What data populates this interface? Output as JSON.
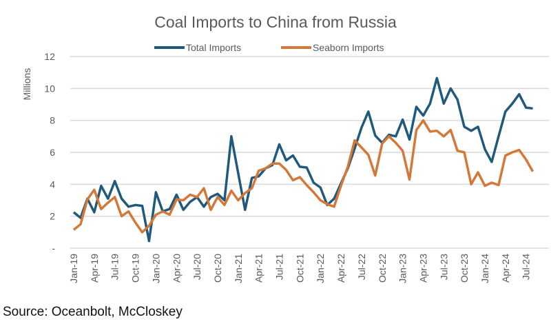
{
  "chart_data": {
    "type": "line",
    "title": "Coal Imports to China from Russia",
    "ylabel": "Millions",
    "xlabel": "",
    "ylim": [
      0,
      12
    ],
    "yticks": [
      0,
      2,
      4,
      6,
      8,
      10,
      12
    ],
    "ytick_labels": [
      "-",
      "2",
      "4",
      "6",
      "8",
      "10",
      "12"
    ],
    "grid": "horizontal",
    "legend_position": "top",
    "x": [
      "Jan-19",
      "Feb-19",
      "Mar-19",
      "Apr-19",
      "May-19",
      "Jun-19",
      "Jul-19",
      "Aug-19",
      "Sep-19",
      "Oct-19",
      "Nov-19",
      "Dec-19",
      "Jan-20",
      "Feb-20",
      "Mar-20",
      "Apr-20",
      "May-20",
      "Jun-20",
      "Jul-20",
      "Aug-20",
      "Sep-20",
      "Oct-20",
      "Nov-20",
      "Dec-20",
      "Jan-21",
      "Feb-21",
      "Mar-21",
      "Apr-21",
      "May-21",
      "Jun-21",
      "Jul-21",
      "Aug-21",
      "Sep-21",
      "Oct-21",
      "Nov-21",
      "Dec-21",
      "Jan-22",
      "Feb-22",
      "Mar-22",
      "Apr-22",
      "May-22",
      "Jun-22",
      "Jul-22",
      "Aug-22",
      "Sep-22",
      "Oct-22",
      "Nov-22",
      "Dec-22",
      "Jan-23",
      "Feb-23",
      "Mar-23",
      "Apr-23",
      "May-23",
      "Jun-23",
      "Jul-23",
      "Aug-23",
      "Sep-23",
      "Oct-23",
      "Nov-23",
      "Dec-23",
      "Jan-24",
      "Feb-24",
      "Mar-24",
      "Apr-24",
      "May-24",
      "Jun-24",
      "Jul-24",
      "Aug-24"
    ],
    "xtick_labels": [
      "Jan-19",
      "Apr-19",
      "Jul-19",
      "Oct-19",
      "Jan-20",
      "Apr-20",
      "Jul-20",
      "Oct-20",
      "Jan-21",
      "Apr-21",
      "Jul-21",
      "Oct-21",
      "Jan-22",
      "Apr-22",
      "Jul-22",
      "Oct-22",
      "Jan-23",
      "Apr-23",
      "Jul-23",
      "Oct-23",
      "Jan-24",
      "Apr-24",
      "Jul-24"
    ],
    "series": [
      {
        "name": "Total Imports",
        "color": "#1f5a7c",
        "values": [
          2.25,
          1.9,
          3.1,
          2.25,
          3.9,
          3.1,
          4.2,
          3.1,
          2.6,
          2.7,
          2.65,
          0.45,
          3.5,
          2.3,
          2.45,
          3.35,
          2.4,
          2.9,
          3.2,
          2.6,
          3.2,
          3.4,
          3.0,
          7.0,
          4.7,
          2.4,
          4.4,
          4.5,
          5.0,
          5.2,
          6.5,
          5.5,
          5.8,
          5.1,
          5.05,
          4.1,
          3.8,
          2.7,
          3.1,
          4.05,
          5.0,
          6.25,
          7.55,
          8.55,
          7.05,
          6.6,
          7.1,
          7.0,
          8.05,
          6.8,
          8.85,
          8.3,
          9.05,
          10.65,
          9.05,
          10.0,
          9.3,
          7.6,
          7.35,
          7.6,
          6.2,
          5.4,
          7.0,
          8.55,
          9.05,
          9.64,
          8.8,
          8.75
        ]
      },
      {
        "name": "Seaborn Imports",
        "color": "#d4783a",
        "values": [
          1.15,
          1.5,
          3.05,
          3.65,
          2.45,
          2.85,
          3.2,
          2.0,
          2.3,
          1.6,
          1.0,
          1.4,
          2.1,
          2.3,
          2.1,
          3.05,
          3.0,
          3.35,
          3.2,
          3.75,
          2.4,
          3.2,
          2.7,
          3.6,
          3.0,
          3.45,
          3.75,
          4.85,
          5.0,
          5.3,
          5.3,
          4.9,
          4.25,
          4.45,
          3.95,
          3.5,
          3.0,
          2.75,
          2.6,
          3.9,
          5.1,
          6.75,
          6.3,
          5.85,
          4.55,
          6.55,
          7.0,
          6.6,
          6.1,
          4.3,
          7.4,
          8.0,
          7.3,
          7.35,
          7.0,
          7.4,
          6.1,
          6.0,
          4.0,
          4.75,
          3.9,
          4.1,
          3.95,
          5.8,
          6.0,
          6.15,
          5.55,
          4.8
        ]
      }
    ]
  },
  "source": "Source: Oceanbolt, McCloskey"
}
